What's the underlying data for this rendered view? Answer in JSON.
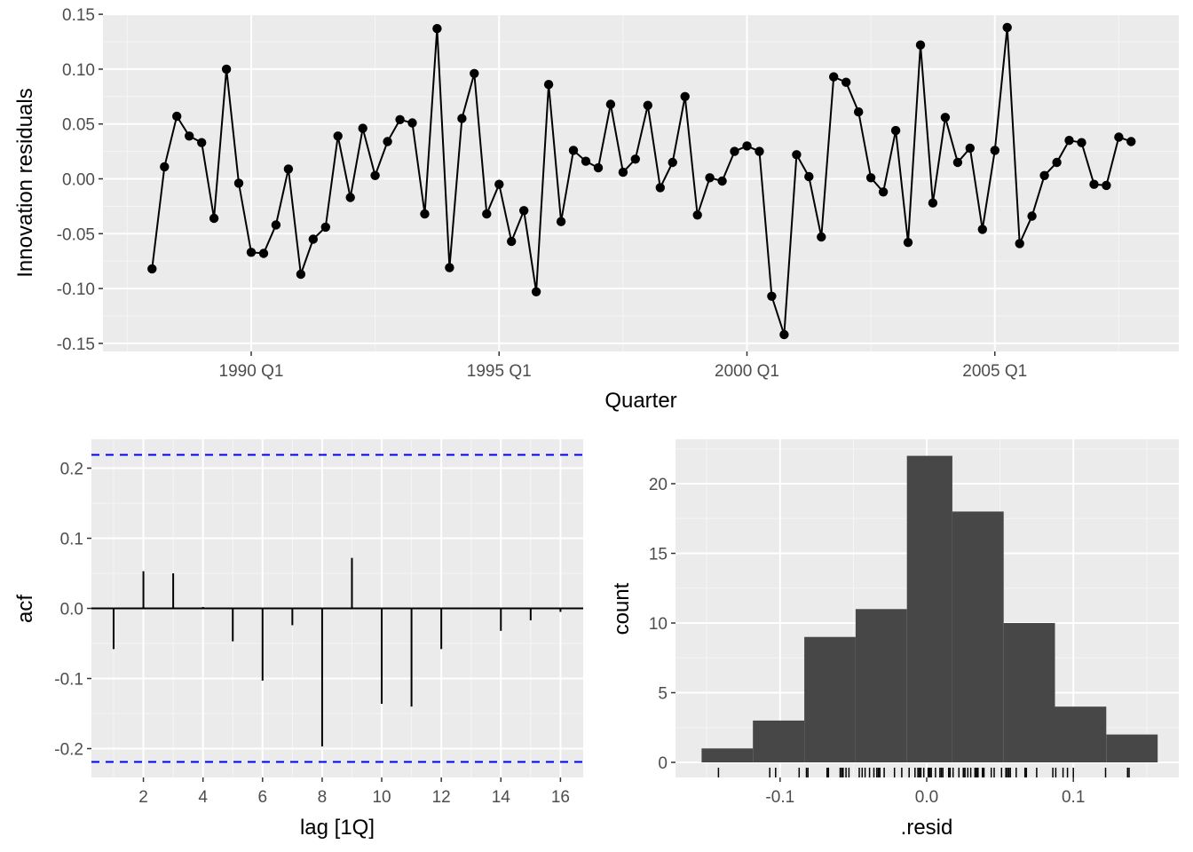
{
  "chart_data": [
    {
      "type": "line",
      "xlabel": "Quarter",
      "ylabel": "Innovation residuals",
      "x_ticks": [
        "1990 Q1",
        "1995 Q1",
        "2000 Q1",
        "2005 Q1"
      ],
      "y_ticks": [
        "0.15",
        "0.10",
        "0.05",
        "0.00",
        "-0.05",
        "-0.10",
        "-0.15"
      ],
      "ylim": [
        -0.155,
        0.155
      ],
      "start_quarter": "1988 Q1",
      "end_quarter": "2007 Q4",
      "series": [
        {
          "values": [
            -0.082,
            0.011,
            0.057,
            0.039,
            0.033,
            -0.036,
            0.1,
            -0.004,
            -0.067,
            -0.068,
            -0.042,
            0.009,
            -0.087,
            -0.055,
            -0.044,
            0.039,
            -0.017,
            0.046,
            0.003,
            0.034,
            0.054,
            0.051,
            -0.032,
            0.137,
            -0.081,
            0.055,
            0.096,
            -0.032,
            -0.005,
            -0.057,
            -0.029,
            -0.103,
            0.086,
            -0.039,
            0.026,
            0.016,
            0.01,
            0.068,
            0.006,
            0.018,
            0.067,
            -0.008,
            0.015,
            0.075,
            -0.033,
            0.001,
            -0.002,
            0.025,
            0.03,
            0.025,
            -0.107,
            -0.142,
            0.022,
            0.002,
            -0.053,
            0.093,
            0.088,
            0.061,
            0.001,
            -0.012,
            0.044,
            -0.058,
            0.122,
            -0.022,
            0.056,
            0.015,
            0.028,
            -0.046,
            0.026,
            0.138,
            -0.059,
            -0.034,
            0.003,
            0.015,
            0.035,
            0.033,
            -0.005,
            -0.006,
            0.038,
            0.034
          ]
        }
      ]
    },
    {
      "type": "bar",
      "xlabel": "lag [1Q]",
      "ylabel": "acf",
      "x_ticks": [
        "2",
        "4",
        "6",
        "8",
        "10",
        "12",
        "14",
        "16"
      ],
      "y_ticks": [
        "0.2",
        "0.1",
        "0.0",
        "-0.1",
        "-0.2"
      ],
      "ylim": [
        -0.24,
        0.23
      ],
      "xlim": [
        0.2,
        16.8
      ],
      "significance_bounds": [
        0.219,
        -0.219
      ],
      "lags": [
        1,
        2,
        3,
        4,
        5,
        6,
        7,
        8,
        9,
        10,
        11,
        12,
        13,
        14,
        15,
        16
      ],
      "values": [
        -0.058,
        0.053,
        0.05,
        0.002,
        -0.047,
        -0.103,
        -0.024,
        -0.197,
        0.072,
        -0.136,
        -0.14,
        -0.058,
        0.0,
        -0.032,
        -0.017,
        -0.005
      ]
    },
    {
      "type": "bar",
      "subtype": "histogram",
      "xlabel": ".resid",
      "ylabel": "count",
      "x_ticks": [
        "-0.1",
        "0.0",
        "0.1"
      ],
      "y_ticks": [
        "20",
        "15",
        "10",
        "5",
        "0"
      ],
      "xlim": [
        -0.17,
        0.17
      ],
      "ylim": [
        -1.1,
        23.1
      ],
      "bins": [
        {
          "from": -0.1535,
          "to": -0.1185,
          "count": 1
        },
        {
          "from": -0.1185,
          "to": -0.0835,
          "count": 3
        },
        {
          "from": -0.0835,
          "to": -0.0485,
          "count": 9
        },
        {
          "from": -0.0485,
          "to": -0.0135,
          "count": 11
        },
        {
          "from": -0.0135,
          "to": 0.0175,
          "count": 22
        },
        {
          "from": 0.0175,
          "to": 0.0525,
          "count": 18
        },
        {
          "from": 0.0525,
          "to": 0.0875,
          "count": 10
        },
        {
          "from": 0.0875,
          "to": 0.1225,
          "count": 4
        },
        {
          "from": 0.1225,
          "to": 0.1575,
          "count": 2
        }
      ],
      "rug": "resid"
    }
  ]
}
